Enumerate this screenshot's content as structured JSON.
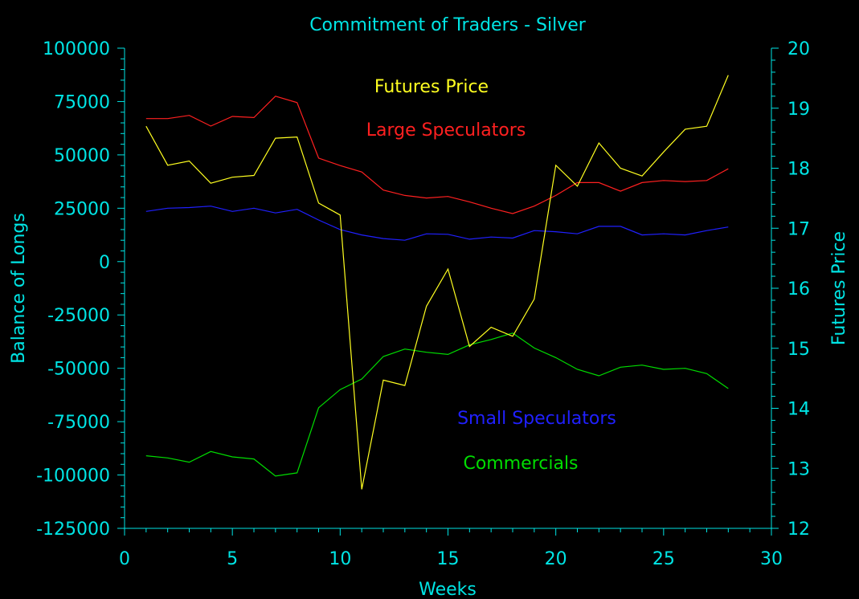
{
  "colors": {
    "background": "#000000",
    "axis": "#00e5e5",
    "large_speculators": "#ff2020",
    "small_speculators": "#2020ff",
    "commercials": "#00dd00",
    "futures_price": "#ffff20"
  },
  "chart_data": {
    "type": "line",
    "title": "Commitment of Traders - Silver",
    "xlabel": "Weeks",
    "ylabel": "Balance of Longs",
    "y2label": "Futures Price",
    "xlim": [
      0,
      30
    ],
    "ylim": [
      -125000,
      100000
    ],
    "y2lim": [
      12,
      20
    ],
    "xticks": [
      0,
      5,
      10,
      15,
      20,
      25,
      30
    ],
    "xtick_labels": [
      "0",
      "5",
      "10",
      "15",
      "20",
      "25",
      "30"
    ],
    "yticks": [
      100000,
      75000,
      50000,
      25000,
      0,
      -25000,
      -50000,
      -75000,
      -100000,
      -125000
    ],
    "ytick_labels": [
      "100000",
      "75000",
      "50000",
      "25000",
      "0",
      "-25000",
      "-50000",
      "-75000",
      "-100000",
      "-125000"
    ],
    "y2ticks": [
      20,
      19,
      18,
      17,
      16,
      15,
      14,
      13,
      12
    ],
    "y2tick_labels": [
      "20",
      "19",
      "18",
      "17",
      "16",
      "15",
      "14",
      "13",
      "12"
    ],
    "grid": false,
    "legend": "inline text labels inside plot",
    "x": [
      1,
      2,
      3,
      4,
      5,
      6,
      7,
      8,
      9,
      10,
      11,
      12,
      13,
      14,
      15,
      16,
      17,
      18,
      19,
      20,
      21,
      22,
      23,
      24,
      25,
      26,
      27,
      28
    ],
    "series": [
      {
        "name": "Large Speculators",
        "axis": "left",
        "color_key": "large_speculators",
        "values": [
          67000,
          67000,
          68500,
          63500,
          68000,
          67500,
          77500,
          74500,
          48500,
          45000,
          42000,
          33500,
          31000,
          29800,
          30500,
          28000,
          25000,
          22500,
          26000,
          31000,
          37000,
          37000,
          33000,
          37000,
          38000,
          37500,
          38000,
          43500
        ]
      },
      {
        "name": "Small Speculators",
        "axis": "left",
        "color_key": "small_speculators",
        "values": [
          23500,
          25000,
          25300,
          26000,
          23500,
          25000,
          22800,
          24500,
          19500,
          15000,
          12500,
          10800,
          10000,
          13000,
          12800,
          10500,
          11500,
          11000,
          14500,
          14000,
          13000,
          16500,
          16500,
          12500,
          13000,
          12500,
          14500,
          16200
        ]
      },
      {
        "name": "Commercials",
        "axis": "left",
        "color_key": "commercials",
        "values": [
          -91000,
          -92000,
          -94000,
          -89000,
          -91500,
          -92500,
          -100500,
          -99000,
          -68500,
          -60000,
          -55000,
          -44500,
          -41000,
          -42500,
          -43500,
          -39000,
          -36500,
          -33500,
          -40500,
          -45000,
          -50500,
          -53500,
          -49500,
          -48500,
          -50500,
          -50000,
          -52500,
          -59500
        ]
      },
      {
        "name": "Futures Price",
        "axis": "right",
        "color_key": "futures_price",
        "values": [
          18.7,
          18.05,
          18.12,
          17.75,
          17.85,
          17.88,
          18.5,
          18.52,
          17.42,
          17.22,
          12.65,
          14.47,
          14.38,
          15.7,
          16.32,
          15.03,
          15.35,
          15.2,
          15.82,
          18.05,
          17.7,
          18.42,
          18.0,
          17.87,
          18.27,
          18.65,
          18.7,
          19.55
        ]
      }
    ]
  }
}
